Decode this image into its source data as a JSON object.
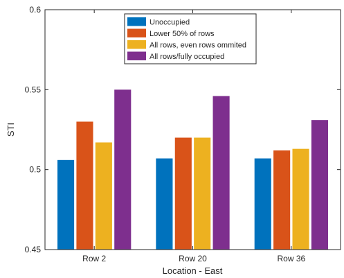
{
  "chart_data": {
    "type": "bar",
    "title": "",
    "xlabel": "Location - East",
    "ylabel": "STI",
    "categories": [
      "Row 2",
      "Row 20",
      "Row 36"
    ],
    "ylim": [
      0.45,
      0.6
    ],
    "yticks": [
      0.45,
      0.5,
      0.55,
      0.6
    ],
    "ytick_labels": [
      "0.45",
      "0.5",
      "0.55",
      "0.6"
    ],
    "grid": false,
    "legend_position": "top-center",
    "series": [
      {
        "name": "Unoccupied",
        "color": "#0072BD",
        "values": [
          0.506,
          0.507,
          0.507
        ]
      },
      {
        "name": "Lower 50% of rows",
        "color": "#D95319",
        "values": [
          0.53,
          0.52,
          0.512
        ]
      },
      {
        "name": "All rows, even rows ommited",
        "color": "#EDB120",
        "values": [
          0.517,
          0.52,
          0.513
        ]
      },
      {
        "name": "All rows/fully occupied",
        "color": "#7E2F8E",
        "values": [
          0.55,
          0.546,
          0.531
        ]
      }
    ]
  }
}
